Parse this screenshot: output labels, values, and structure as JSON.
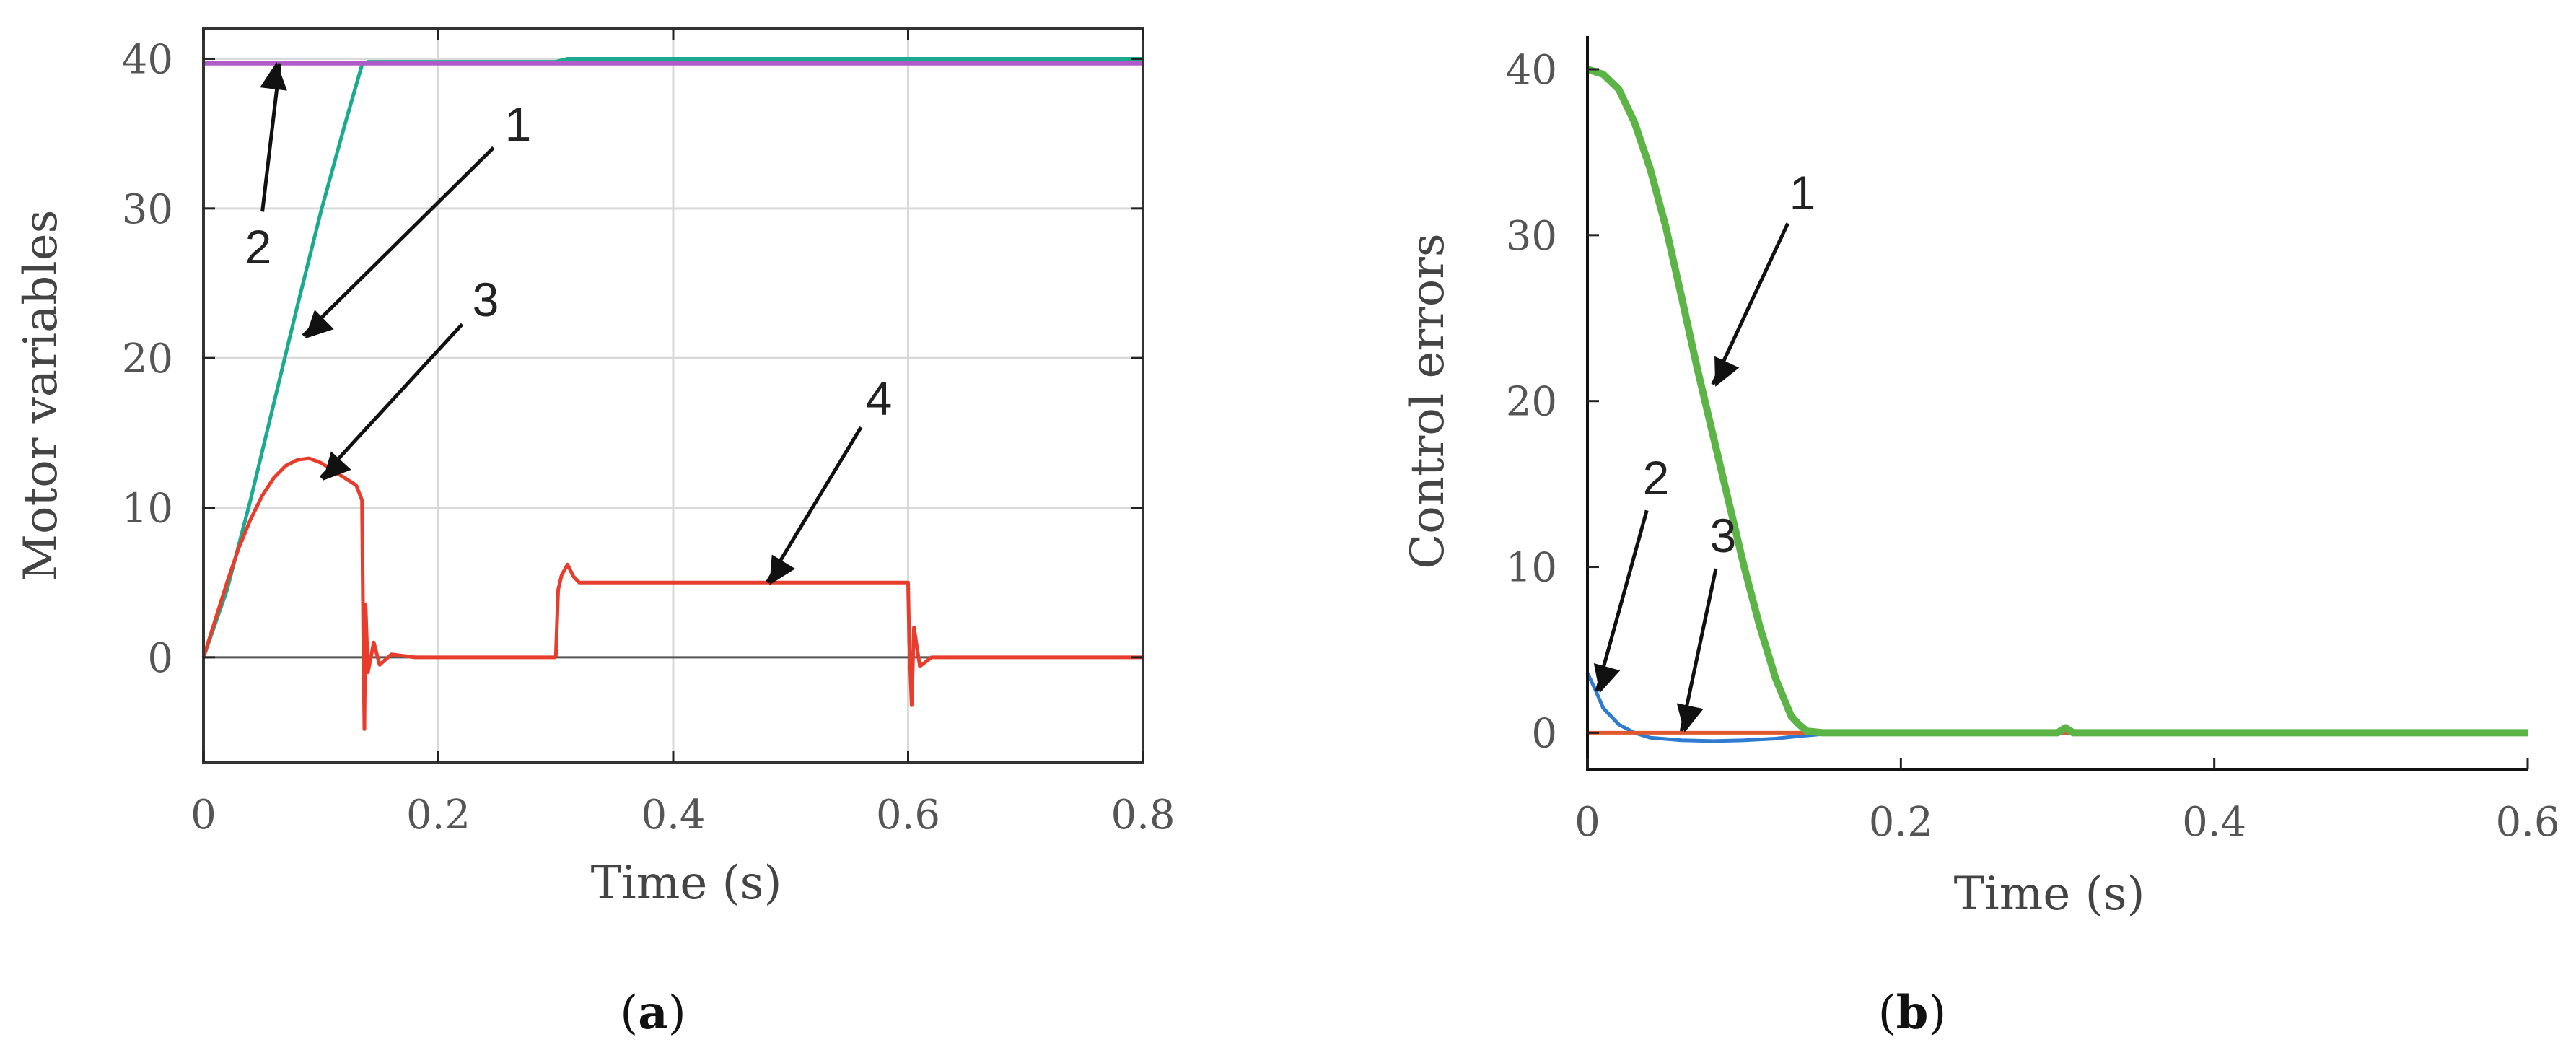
{
  "chart_data": [
    {
      "type": "line",
      "panel_label": "(a)",
      "title": "",
      "xlabel": "Time (s)",
      "ylabel": "Motor variables",
      "xlim": [
        0,
        0.8
      ],
      "ylim": [
        -7,
        42
      ],
      "xticks": [
        "0",
        "0.2",
        "0.4",
        "0.6",
        "0.8"
      ],
      "yticks": [
        "0",
        "10",
        "20",
        "30",
        "40"
      ],
      "grid": true,
      "legend": "none",
      "colors": {
        "1": "#1aaa8e",
        "2": "#b05cc8",
        "3": "#e83c2c",
        "4": "#e83c2c",
        "zero_line": "#555555"
      },
      "series": [
        {
          "label": "1",
          "x": [
            0,
            0.02,
            0.04,
            0.06,
            0.08,
            0.1,
            0.12,
            0.135,
            0.14,
            0.3,
            0.31,
            0.8
          ],
          "y": [
            0,
            4.5,
            10.5,
            17.0,
            23.5,
            29.8,
            35.5,
            39.6,
            39.8,
            39.8,
            40.0,
            40.0
          ]
        },
        {
          "label": "2",
          "x": [
            0,
            0.8
          ],
          "y": [
            39.7,
            39.7
          ]
        },
        {
          "label": "3",
          "x": [
            0,
            0.01,
            0.02,
            0.03,
            0.04,
            0.05,
            0.06,
            0.07,
            0.08,
            0.09,
            0.1,
            0.11,
            0.12,
            0.13,
            0.135,
            0.136,
            0.137,
            0.138,
            0.14,
            0.145,
            0.15,
            0.16,
            0.18,
            0.2,
            0.25,
            0.3
          ],
          "y": [
            0,
            2.5,
            5.0,
            7.3,
            9.2,
            10.8,
            12.0,
            12.8,
            13.2,
            13.3,
            13.0,
            12.5,
            12.0,
            11.5,
            10.5,
            2.0,
            -4.8,
            3.5,
            -1.0,
            1.0,
            -0.5,
            0.2,
            0,
            0,
            0,
            0
          ]
        },
        {
          "label": "4",
          "x": [
            0.3,
            0.302,
            0.305,
            0.31,
            0.315,
            0.32,
            0.35,
            0.45,
            0.55,
            0.599,
            0.6,
            0.601,
            0.603,
            0.605,
            0.61,
            0.62,
            0.7,
            0.8
          ],
          "y": [
            0,
            4.5,
            5.5,
            6.2,
            5.4,
            5.0,
            5.0,
            5.0,
            5.0,
            5.0,
            5.0,
            1.0,
            -3.2,
            2.0,
            -0.6,
            0,
            0,
            0
          ]
        }
      ],
      "annotations": [
        {
          "text": "1",
          "target": [
            0.085,
            21.5
          ]
        },
        {
          "text": "2",
          "target": [
            0.065,
            39.7
          ]
        },
        {
          "text": "3",
          "target": [
            0.1,
            12.0
          ]
        },
        {
          "text": "4",
          "target": [
            0.48,
            5.0
          ]
        }
      ]
    },
    {
      "type": "line",
      "panel_label": "(b)",
      "title": "",
      "xlabel": "Time (s)",
      "ylabel": "Control errors",
      "xlim": [
        0,
        0.6
      ],
      "ylim": [
        -2.2,
        42
      ],
      "xticks": [
        "0",
        "0.2",
        "0.4",
        "0.6"
      ],
      "yticks": [
        "0",
        "10",
        "20",
        "30",
        "40"
      ],
      "grid": false,
      "legend": "none",
      "colors": {
        "1": "#5cb346",
        "2": "#2f7bd1",
        "3": "#e0582e"
      },
      "series": [
        {
          "label": "1",
          "x": [
            0,
            0.01,
            0.02,
            0.03,
            0.04,
            0.05,
            0.06,
            0.07,
            0.08,
            0.09,
            0.1,
            0.11,
            0.12,
            0.13,
            0.135,
            0.14,
            0.15,
            0.2,
            0.3,
            0.305,
            0.31,
            0.6
          ],
          "y": [
            40.0,
            39.7,
            38.8,
            36.8,
            34.0,
            30.5,
            26.3,
            22.0,
            18.0,
            14.0,
            10.0,
            6.4,
            3.3,
            1.0,
            0.5,
            0.1,
            0,
            0,
            0,
            0.3,
            0,
            0
          ]
        },
        {
          "label": "2",
          "x": [
            0,
            0.005,
            0.01,
            0.02,
            0.03,
            0.04,
            0.06,
            0.08,
            0.1,
            0.12,
            0.135,
            0.16,
            0.2,
            0.6
          ],
          "y": [
            3.6,
            2.6,
            1.5,
            0.5,
            0.0,
            -0.3,
            -0.45,
            -0.5,
            -0.45,
            -0.35,
            -0.2,
            0,
            0,
            0
          ]
        },
        {
          "label": "3",
          "x": [
            0,
            0.6
          ],
          "y": [
            0,
            0
          ]
        }
      ],
      "annotations": [
        {
          "text": "1",
          "target": [
            0.08,
            21.0
          ]
        },
        {
          "text": "2",
          "target": [
            0.006,
            2.5
          ]
        },
        {
          "text": "3",
          "target": [
            0.06,
            0.1
          ]
        }
      ]
    }
  ]
}
